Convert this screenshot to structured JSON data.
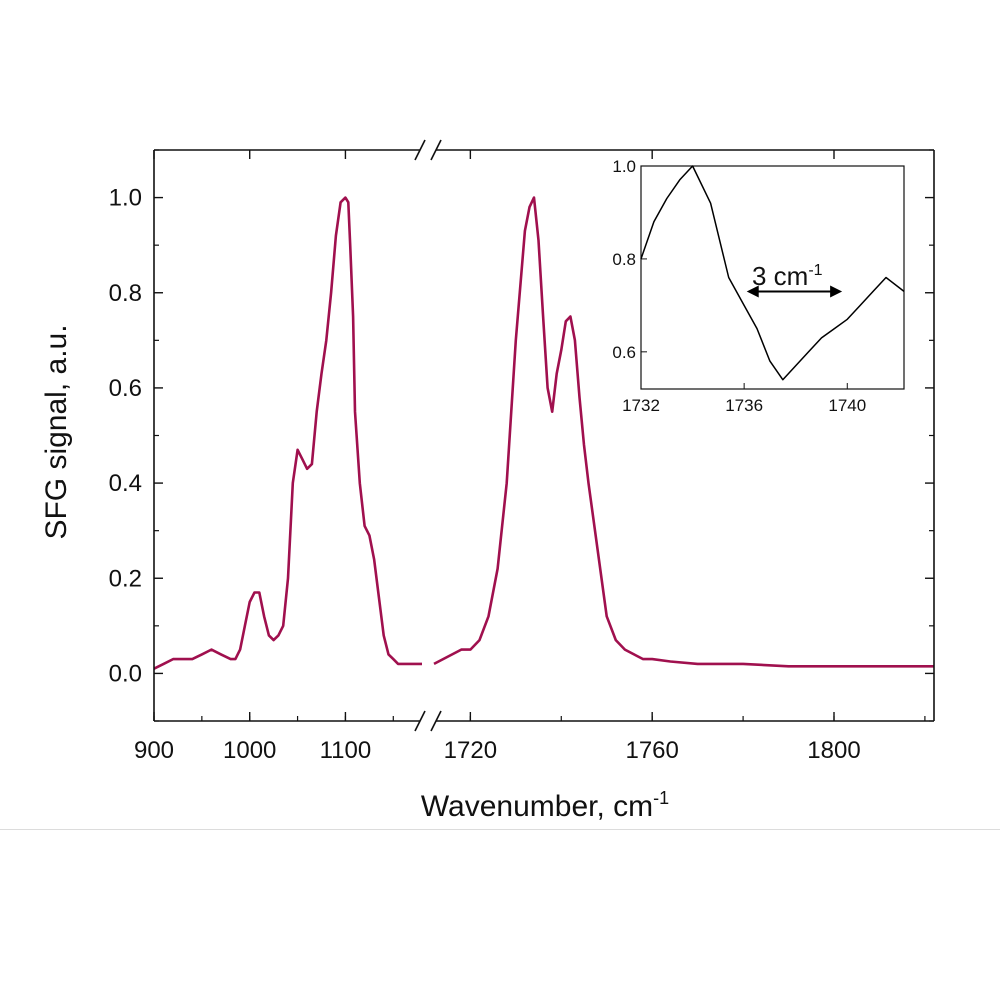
{
  "chart_data": {
    "type": "line",
    "xlabel": "Wavenumber, cm",
    "xlabel_sup": "-1",
    "ylabel": "SFG signal, a.u.",
    "line_color": "#a0104e",
    "ylim": [
      -0.1,
      1.1
    ],
    "yticks": [
      "0.0",
      "0.2",
      "0.4",
      "0.6",
      "0.8",
      "1.0"
    ],
    "axis_break": true,
    "segments": [
      {
        "xlim": [
          900,
          1180
        ],
        "xticks": [
          "900",
          "1000",
          "1100"
        ],
        "x": [
          900,
          910,
          920,
          930,
          940,
          950,
          960,
          970,
          980,
          985,
          990,
          995,
          1000,
          1005,
          1010,
          1015,
          1020,
          1025,
          1030,
          1035,
          1040,
          1045,
          1050,
          1055,
          1060,
          1065,
          1070,
          1075,
          1080,
          1085,
          1090,
          1095,
          1100,
          1103,
          1105,
          1108,
          1110,
          1115,
          1120,
          1125,
          1130,
          1135,
          1140,
          1145,
          1150,
          1155,
          1160,
          1165,
          1170,
          1175,
          1180
        ],
        "y": [
          0.01,
          0.02,
          0.03,
          0.03,
          0.03,
          0.04,
          0.05,
          0.04,
          0.03,
          0.03,
          0.05,
          0.1,
          0.15,
          0.17,
          0.17,
          0.12,
          0.08,
          0.07,
          0.08,
          0.1,
          0.2,
          0.4,
          0.47,
          0.45,
          0.43,
          0.44,
          0.55,
          0.63,
          0.7,
          0.8,
          0.92,
          0.99,
          1.0,
          0.99,
          0.9,
          0.75,
          0.55,
          0.4,
          0.31,
          0.29,
          0.24,
          0.16,
          0.08,
          0.04,
          0.03,
          0.02,
          0.02,
          0.02,
          0.02,
          0.02,
          0.02
        ]
      },
      {
        "xlim": [
          1712,
          1822
        ],
        "xticks": [
          "1720",
          "1760",
          "1800"
        ],
        "x": [
          1712,
          1716,
          1718,
          1720,
          1722,
          1724,
          1726,
          1728,
          1730,
          1732,
          1733,
          1734,
          1735,
          1736,
          1737,
          1738,
          1739,
          1740,
          1741,
          1742,
          1743,
          1744,
          1745,
          1746,
          1748,
          1750,
          1752,
          1754,
          1756,
          1758,
          1760,
          1764,
          1770,
          1780,
          1790,
          1800,
          1810,
          1822
        ],
        "y": [
          0.02,
          0.04,
          0.05,
          0.05,
          0.07,
          0.12,
          0.22,
          0.4,
          0.7,
          0.93,
          0.98,
          1.0,
          0.91,
          0.75,
          0.6,
          0.55,
          0.63,
          0.68,
          0.74,
          0.75,
          0.7,
          0.58,
          0.48,
          0.4,
          0.26,
          0.12,
          0.07,
          0.05,
          0.04,
          0.03,
          0.03,
          0.025,
          0.02,
          0.02,
          0.015,
          0.015,
          0.015,
          0.015
        ]
      }
    ],
    "inset": {
      "type": "line",
      "xlim": [
        1732,
        1742.2
      ],
      "ylim": [
        0.52,
        1.0
      ],
      "xticks": [
        "1732",
        "1736",
        "1740"
      ],
      "yticks": [
        "0.6",
        "0.8",
        "1.0"
      ],
      "line_color": "#000000",
      "x": [
        1732,
        1732.5,
        1733,
        1733.5,
        1734,
        1734.7,
        1735.4,
        1736,
        1736.5,
        1737,
        1737.5,
        1738,
        1738.5,
        1739,
        1739.5,
        1740,
        1740.5,
        1741,
        1741.5,
        1742.2
      ],
      "y": [
        0.8,
        0.88,
        0.93,
        0.97,
        1.0,
        0.92,
        0.76,
        0.7,
        0.65,
        0.58,
        0.54,
        0.57,
        0.6,
        0.63,
        0.65,
        0.67,
        0.7,
        0.73,
        0.76,
        0.73
      ],
      "annotation": "3 cm",
      "annotation_sup": "-1",
      "arrow_x": [
        1736.1,
        1739.8
      ],
      "arrow_y": 0.73
    }
  }
}
